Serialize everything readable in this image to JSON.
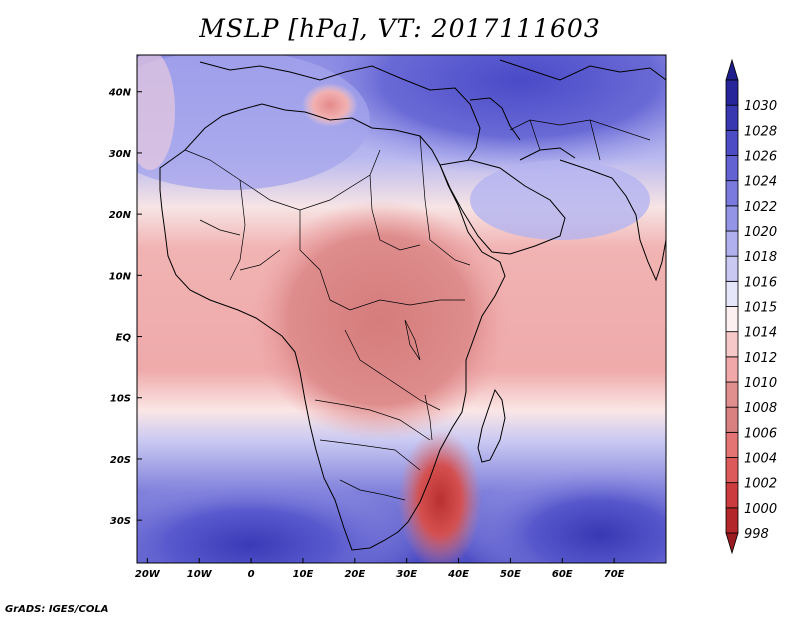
{
  "title": "MSLP [hPa], VT: 2017111603",
  "credit": "GrADS: IGES/COLA",
  "map": {
    "lon_range": [
      -22,
      80
    ],
    "lat_range": [
      -37,
      46
    ],
    "lon_ticks": [
      {
        "value": -20,
        "label": "20W"
      },
      {
        "value": -10,
        "label": "10W"
      },
      {
        "value": 0,
        "label": "0"
      },
      {
        "value": 10,
        "label": "10E"
      },
      {
        "value": 20,
        "label": "20E"
      },
      {
        "value": 30,
        "label": "30E"
      },
      {
        "value": 40,
        "label": "40E"
      },
      {
        "value": 50,
        "label": "50E"
      },
      {
        "value": 60,
        "label": "60E"
      },
      {
        "value": 70,
        "label": "70E"
      }
    ],
    "lat_ticks": [
      {
        "value": 40,
        "label": "40N"
      },
      {
        "value": 30,
        "label": "30N"
      },
      {
        "value": 20,
        "label": "20N"
      },
      {
        "value": 10,
        "label": "10N"
      },
      {
        "value": 0,
        "label": "EQ"
      },
      {
        "value": -10,
        "label": "10S"
      },
      {
        "value": -20,
        "label": "20S"
      },
      {
        "value": -30,
        "label": "30S"
      }
    ]
  },
  "colorbar": [
    {
      "label": "998",
      "color": "#b3262a"
    },
    {
      "label": "1000",
      "color": "#cc3c3e"
    },
    {
      "label": "1002",
      "color": "#dd5a5a"
    },
    {
      "label": "1004",
      "color": "#e47373"
    },
    {
      "label": "1006",
      "color": "#d98080"
    },
    {
      "label": "1008",
      "color": "#e08e8e"
    },
    {
      "label": "1010",
      "color": "#f0a8a8"
    },
    {
      "label": "1012",
      "color": "#f7c8c8"
    },
    {
      "label": "1014",
      "color": "#fdf0f0"
    },
    {
      "label": "1015",
      "color": "#e6e6fa"
    },
    {
      "label": "1016",
      "color": "#c8c8f2"
    },
    {
      "label": "1018",
      "color": "#b0b0ee"
    },
    {
      "label": "1020",
      "color": "#9494e6"
    },
    {
      "label": "1022",
      "color": "#7a7ade"
    },
    {
      "label": "1024",
      "color": "#6262d2"
    },
    {
      "label": "1026",
      "color": "#4c4cc4"
    },
    {
      "label": "1028",
      "color": "#3838b0"
    },
    {
      "label": "1030",
      "color": "#26269a"
    }
  ],
  "colorbar_over_color": "#1e1e8c",
  "colorbar_under_color": "#9a1c20"
}
